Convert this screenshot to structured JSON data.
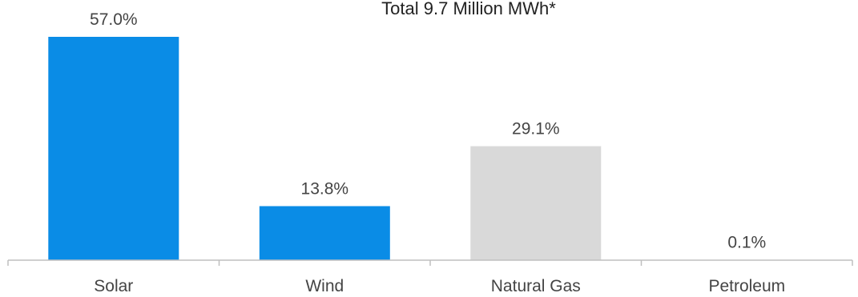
{
  "chart_data": {
    "type": "bar",
    "title": "Total 9.7 Million MWh*",
    "categories": [
      "Solar",
      "Wind",
      "Natural Gas",
      "Petroleum"
    ],
    "values": [
      57.0,
      13.8,
      29.1,
      0.1
    ],
    "data_labels": [
      "57.0%",
      "13.8%",
      "29.1%",
      "0.1%"
    ],
    "bar_colors": [
      "#0a8ce6",
      "#0a8ce6",
      "#d9d9d9",
      "#d9d9d9"
    ],
    "axis_color": "#bfbfbf",
    "xlabel": "",
    "ylabel": "",
    "ylim": [
      0,
      60
    ],
    "grid": false,
    "legend": "none"
  }
}
